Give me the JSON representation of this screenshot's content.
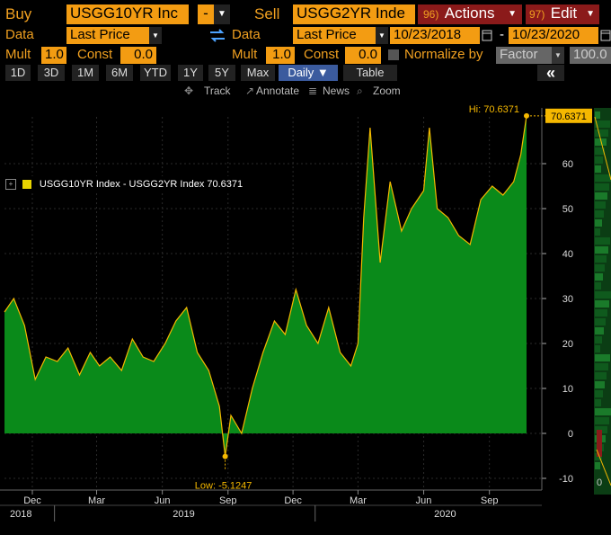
{
  "header": {
    "buy_label": "Buy",
    "buy_security": "USGG10YR Inc",
    "op_symbol": "-",
    "sell_label": "Sell",
    "sell_security": "USGG2YR Inde",
    "actions_num": "96)",
    "actions_label": "Actions",
    "edit_num": "97)",
    "edit_label": "Edit"
  },
  "row2": {
    "data_label": "Data",
    "data_value": "Last Price",
    "data_label2": "Data",
    "data_value2": "Last Price",
    "start_date": "10/23/2018",
    "date_sep": "-",
    "end_date": "10/23/2020"
  },
  "row3": {
    "mult_label": "Mult",
    "mult_value": "1.0",
    "const_label": "Const",
    "const_value": "0.0",
    "mult_label2": "Mult",
    "mult_value2": "1.0",
    "const_label2": "Const",
    "const_value2": "0.0",
    "normalize_label": "Normalize by",
    "factor_value": "Factor",
    "factor_num": "100.0"
  },
  "periods": [
    "1D",
    "3D",
    "1M",
    "6M",
    "YTD",
    "1Y",
    "5Y",
    "Max"
  ],
  "frequency": "Daily ▼",
  "table_label": "Table",
  "tools": {
    "track": "Track",
    "annotate": "Annotate",
    "news": "News",
    "zoom": "Zoom"
  },
  "colors": {
    "area": "#0a8a1a",
    "line": "#f5b800",
    "accent": "#f39c12"
  },
  "chart_data": {
    "type": "area",
    "series": [
      {
        "name": "USGG10YR Index - USGG2YR Index",
        "last_value_label": "70.6371",
        "x": [
          "2018-10-23",
          "2018-11-05",
          "2018-11-20",
          "2018-12-05",
          "2018-12-20",
          "2019-01-05",
          "2019-01-20",
          "2019-02-05",
          "2019-02-20",
          "2019-03-05",
          "2019-03-20",
          "2019-04-05",
          "2019-04-20",
          "2019-05-05",
          "2019-05-20",
          "2019-06-05",
          "2019-06-20",
          "2019-07-05",
          "2019-07-20",
          "2019-08-05",
          "2019-08-20",
          "2019-08-28",
          "2019-09-05",
          "2019-09-20",
          "2019-10-05",
          "2019-10-20",
          "2019-11-05",
          "2019-11-20",
          "2019-12-05",
          "2019-12-20",
          "2020-01-05",
          "2020-01-20",
          "2020-02-05",
          "2020-02-20",
          "2020-03-01",
          "2020-03-09",
          "2020-03-18",
          "2020-04-01",
          "2020-04-15",
          "2020-05-01",
          "2020-05-15",
          "2020-06-01",
          "2020-06-09",
          "2020-06-20",
          "2020-07-05",
          "2020-07-20",
          "2020-08-05",
          "2020-08-20",
          "2020-09-05",
          "2020-09-20",
          "2020-10-05",
          "2020-10-15",
          "2020-10-23"
        ],
        "values": [
          27,
          30,
          24,
          12,
          17,
          16,
          19,
          13,
          18,
          15,
          17,
          14,
          21,
          17,
          16,
          20,
          25,
          28,
          18,
          14,
          6,
          -5.1247,
          4,
          0,
          10,
          18,
          25,
          22,
          32,
          24,
          20,
          28,
          18,
          15,
          20,
          48,
          68,
          38,
          56,
          45,
          50,
          54,
          68,
          50,
          48,
          44,
          42,
          52,
          55,
          53,
          56,
          62,
          70.6371
        ]
      }
    ],
    "ylim": [
      -10,
      75
    ],
    "yticks": [
      -10,
      0,
      10,
      20,
      30,
      40,
      50,
      60
    ],
    "x_month_ticks": [
      {
        "date": "2018-12-01",
        "label": "Dec"
      },
      {
        "date": "2019-03-01",
        "label": "Mar"
      },
      {
        "date": "2019-06-01",
        "label": "Jun"
      },
      {
        "date": "2019-09-01",
        "label": "Sep"
      },
      {
        "date": "2019-12-01",
        "label": "Dec"
      },
      {
        "date": "2020-03-01",
        "label": "Mar"
      },
      {
        "date": "2020-06-01",
        "label": "Jun"
      },
      {
        "date": "2020-09-01",
        "label": "Sep"
      }
    ],
    "x_year_labels": [
      {
        "date": "2018-11-15",
        "label": "2018"
      },
      {
        "date": "2019-07-01",
        "label": "2019"
      },
      {
        "date": "2020-07-01",
        "label": "2020"
      }
    ],
    "x_year_separators": [
      "2019-01-01",
      "2020-01-01"
    ],
    "hi_label": "Hi: 70.6371",
    "low_label": "Low: -5.1247",
    "legend": "USGG10YR Index - USGG2YR Index 70.6371",
    "grid": true
  }
}
